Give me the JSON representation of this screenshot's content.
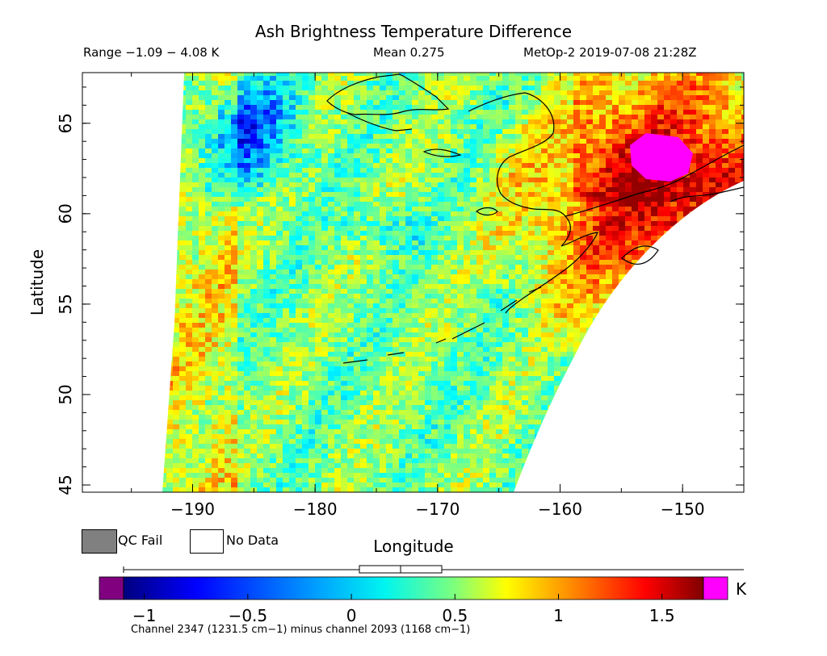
{
  "title": "Ash Brightness Temperature Difference",
  "range_text": "Range −1.09 − 4.08 K",
  "mean_text": "Mean 0.275",
  "satellite_text": "MetOp-2 2019-07-08 21:28Z",
  "axes": {
    "x_label": "Longitude",
    "y_label": "Latitude",
    "x_ticks": [
      "−190",
      "−180",
      "−170",
      "−160",
      "−150"
    ],
    "y_ticks": [
      "45",
      "50",
      "55",
      "60",
      "65"
    ],
    "x_range": [
      -199,
      -145
    ],
    "y_range": [
      44.6,
      67.8
    ]
  },
  "legend": {
    "qc_fail_label": "QC Fail",
    "no_data_label": "No Data",
    "qc_fail_color": "#808080",
    "no_data_color": "#ffffff"
  },
  "colorbar": {
    "ticks": [
      "−1",
      "−0.5",
      "0",
      "0.5",
      "1",
      "1.5"
    ],
    "unit": "K",
    "range": [
      -1.1,
      1.7
    ],
    "underflow_color": "#800080",
    "overflow_color": "#ff00ff"
  },
  "channel_text": "Channel 2347 (1231.5 cm−1) minus channel 2093 (1168 cm−1)"
}
